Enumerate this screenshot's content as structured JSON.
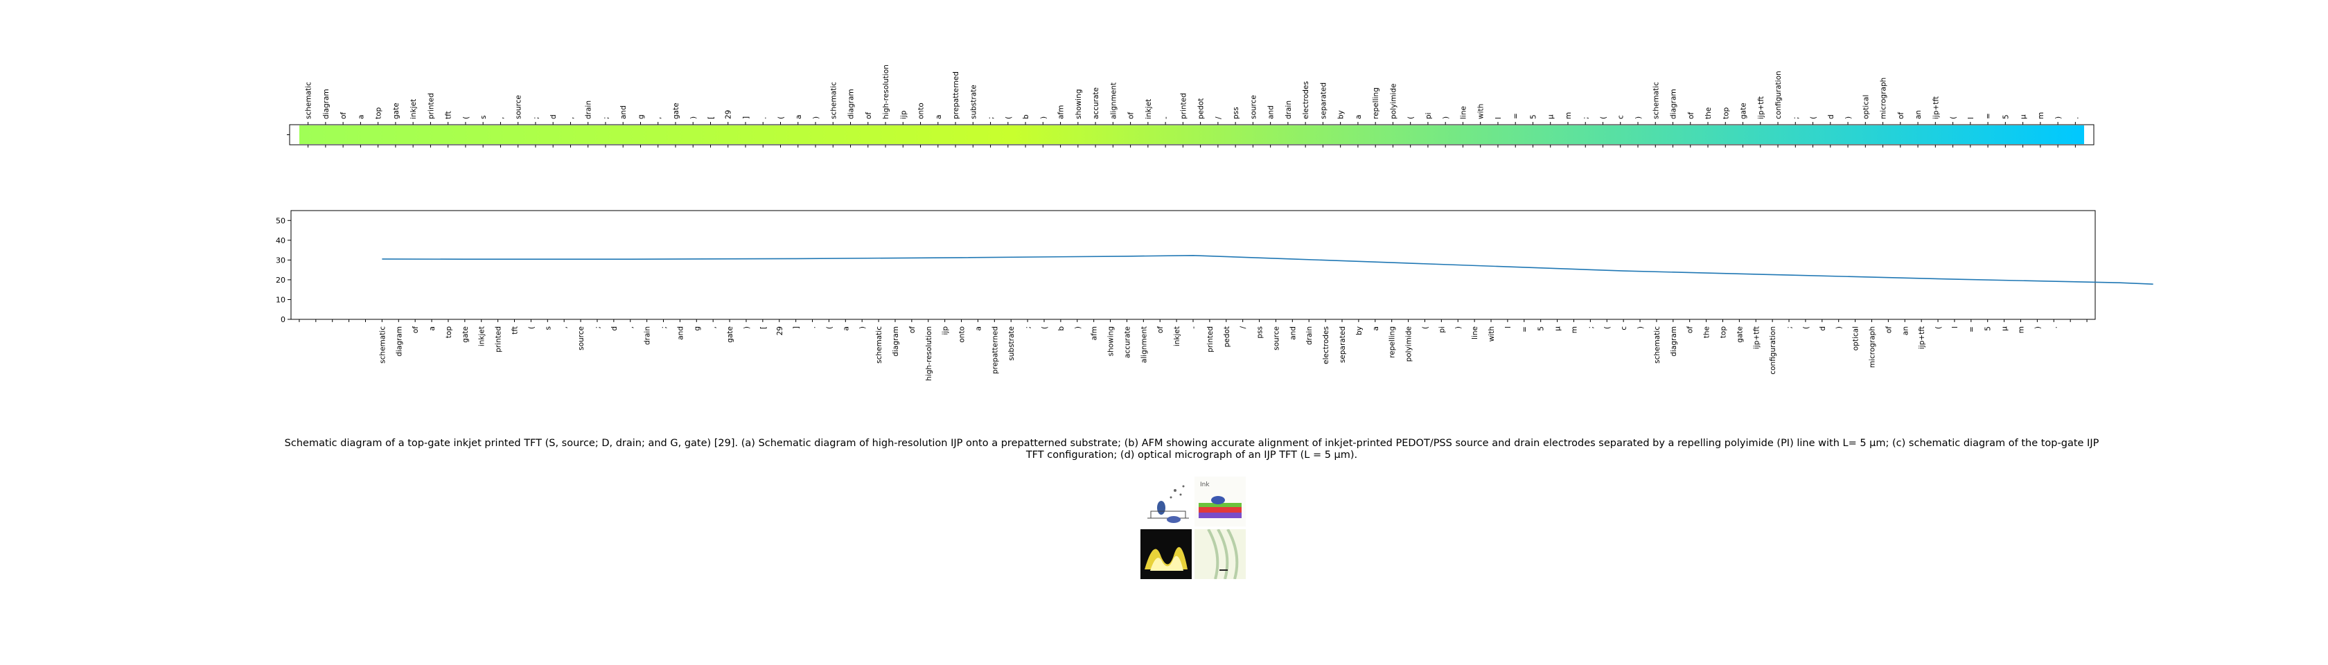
{
  "chart_data": [
    {
      "type": "heatmap",
      "title": "",
      "tokens": [
        "schematic",
        "diagram",
        "of",
        "a",
        "top",
        "gate",
        "inkjet",
        "printed",
        "tft",
        "(",
        "s",
        ",",
        "source",
        ";",
        "d",
        ",",
        "drain",
        ";",
        "and",
        "g",
        ",",
        "gate",
        ")",
        "[",
        "29",
        "]",
        ".",
        "(",
        "a",
        ")",
        "schematic",
        "diagram",
        "of",
        "high-resolution",
        "ijp",
        "onto",
        "a",
        "prepatterned",
        "substrate",
        ";",
        "(",
        "b",
        ")",
        "afm",
        "showing",
        "accurate",
        "alignment",
        "of",
        "inkjet",
        "-",
        "printed",
        "pedot",
        "/",
        "pss",
        "source",
        "and",
        "drain",
        "electrodes",
        "separated",
        "by",
        "a",
        "repelling",
        "polyimide",
        "(",
        "pi",
        ")",
        "line",
        "with",
        "l",
        "=",
        "5",
        "μ",
        "m",
        ";",
        "(",
        "c",
        ")",
        "schematic",
        "diagram",
        "of",
        "the",
        "top",
        "gate",
        "ijp+tft",
        "configuration",
        ";",
        "(",
        "d",
        ")",
        "optical",
        "micrograph",
        "of",
        "an",
        "ijp+tft",
        "(",
        "l",
        "=",
        "5",
        "μ",
        "m",
        ")",
        "."
      ],
      "colormap": "jet segment (yellow-green to light blue)",
      "color_start": "#a0ff56",
      "color_mid": "#c8ff2e",
      "color_end": "#00c8ff",
      "tick_labels_rotated": true
    },
    {
      "type": "line",
      "title": "",
      "xlabel": "",
      "ylabel": "",
      "ylim": [
        0,
        55
      ],
      "yticks": [
        0,
        10,
        20,
        30,
        40,
        50
      ],
      "x_tick_labels": [
        "",
        "",
        "",
        "",
        "",
        "schematic",
        "diagram",
        "of",
        "a",
        "top",
        "gate",
        "inkjet",
        "printed",
        "tft",
        "(",
        "s",
        ",",
        "source",
        ";",
        "d",
        ",",
        "drain",
        ";",
        "and",
        "g",
        ",",
        "gate",
        ")",
        "[",
        "29",
        "]",
        ".",
        "(",
        "a",
        ")",
        "schematic",
        "diagram",
        "of",
        "high-resolution",
        "ijp",
        "onto",
        "a",
        "prepatterned",
        "substrate",
        ";",
        "(",
        "b",
        ")",
        "afm",
        "showing",
        "accurate",
        "alignment",
        "of",
        "inkjet",
        "-",
        "printed",
        "pedot",
        "/",
        "pss",
        "source",
        "and",
        "drain",
        "electrodes",
        "separated",
        "by",
        "a",
        "repelling",
        "polyimide",
        "(",
        "pi",
        ")",
        "line",
        "with",
        "l",
        "=",
        "5",
        "μ",
        "m",
        ";",
        "(",
        "c",
        ")",
        "schematic",
        "diagram",
        "of",
        "the",
        "top",
        "gate",
        "ijp+tft",
        "configuration",
        ";",
        "(",
        "d",
        ")",
        "optical",
        "micrograph",
        "of",
        "an",
        "ijp+tft",
        "(",
        "l",
        "=",
        "5",
        "μ",
        "m",
        ")",
        ".",
        "",
        ""
      ],
      "line_color": "#1f77b4",
      "series": [
        {
          "points": [
            [
              5,
              30.5
            ],
            [
              10,
              30.4
            ],
            [
              20,
              30.4
            ],
            [
              30,
              30.7
            ],
            [
              40,
              31.2
            ],
            [
              50,
              31.9
            ],
            [
              54,
              32.3
            ],
            [
              60,
              30.5
            ],
            [
              70,
              27.5
            ],
            [
              80,
              24.5
            ],
            [
              90,
              22.4
            ],
            [
              100,
              20.3
            ],
            [
              110,
              18.5
            ],
            [
              112,
              17.8
            ]
          ]
        }
      ]
    }
  ],
  "caption": "Schematic diagram of a top-gate inkjet printed TFT (S, source; D, drain; and G, gate) [29]. (a) Schematic diagram of high-resolution IJP onto a prepatterned substrate; (b) AFM showing accurate alignment of inkjet-printed PEDOT/PSS source and drain electrodes separated by a repelling polyimide (PI) line with L= 5 μm; (c) schematic diagram of the top-gate IJP TFT configuration; (d) optical micrograph of an IJP TFT (L = 5 μm).",
  "thumbnails": [
    {
      "icon": "schematic-sketch-thumbnail"
    },
    {
      "icon": "layered-device-thumbnail"
    },
    {
      "icon": "afm-surface-thumbnail"
    },
    {
      "icon": "optical-micrograph-thumbnail"
    }
  ]
}
